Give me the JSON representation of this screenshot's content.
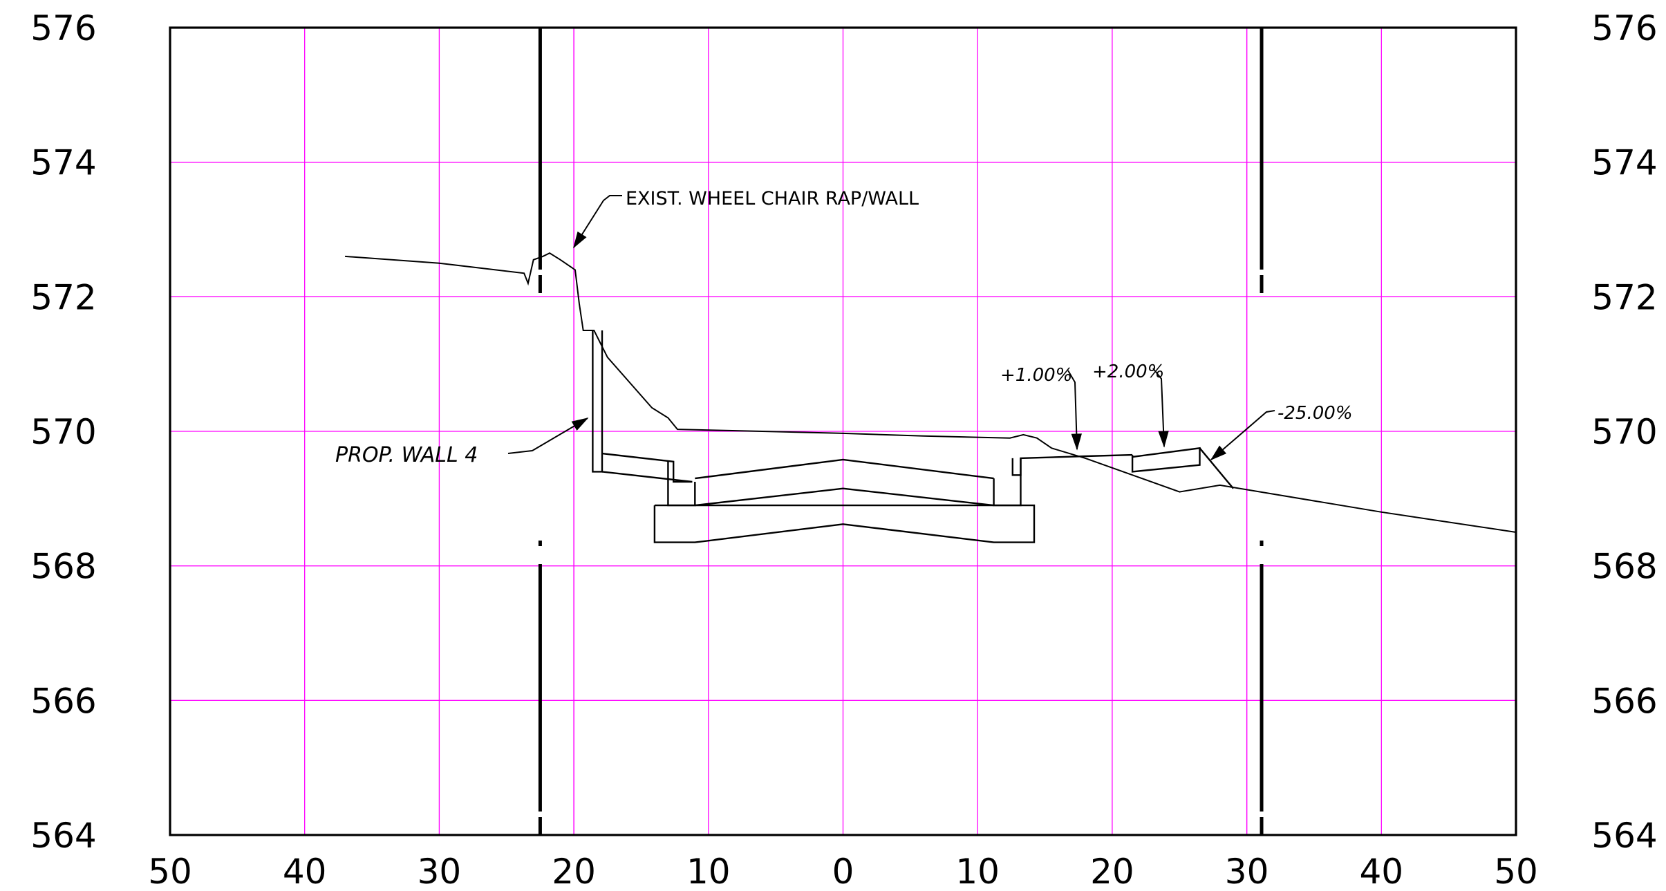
{
  "drawing": {
    "type": "cross-section",
    "offset_axis": {
      "range": [
        -50,
        50
      ],
      "tick_values": [
        -50,
        -40,
        -30,
        -20,
        -10,
        0,
        10,
        20,
        30,
        40,
        50
      ],
      "tick_labels": [
        "50",
        "40",
        "30",
        "20",
        "10",
        "0",
        "10",
        "20",
        "30",
        "40",
        "50"
      ]
    },
    "elevation_axis": {
      "range": [
        564,
        576
      ],
      "tick_values": [
        564,
        566,
        568,
        570,
        572,
        574,
        576
      ],
      "tick_labels": [
        "564",
        "566",
        "568",
        "570",
        "572",
        "574",
        "576"
      ]
    },
    "grid": true,
    "grid_extra_offsets": [
      -20,
      30
    ],
    "colors": {
      "grid": "#ff00ff",
      "ink": "#000000",
      "background": "#ffffff"
    },
    "row_limits": [
      -22.5,
      31.1
    ],
    "existing_ground": [
      [
        -37,
        572.6
      ],
      [
        -30,
        572.5
      ],
      [
        -23.7,
        572.35
      ],
      [
        -23.4,
        572.2
      ],
      [
        -23,
        572.55
      ],
      [
        -22.3,
        572.6
      ],
      [
        -21.8,
        572.65
      ],
      [
        -21,
        572.55
      ],
      [
        -19.9,
        572.4
      ],
      [
        -19.6,
        571.9
      ],
      [
        -19.3,
        571.5
      ],
      [
        -18.5,
        571.5
      ],
      [
        -17.5,
        571.1
      ],
      [
        -14.2,
        570.35
      ],
      [
        -13,
        570.2
      ],
      [
        -12.3,
        570.03
      ],
      [
        -6,
        570.0
      ],
      [
        0,
        569.97
      ],
      [
        6,
        569.93
      ],
      [
        12.4,
        569.9
      ],
      [
        13.4,
        569.95
      ],
      [
        14.4,
        569.9
      ],
      [
        15.5,
        569.75
      ],
      [
        18,
        569.6
      ],
      [
        25,
        569.1
      ],
      [
        28,
        569.2
      ],
      [
        40,
        568.8
      ],
      [
        50,
        568.5
      ]
    ],
    "proposed_section": {
      "wall": [
        [
          -18.6,
          571.5
        ],
        [
          -18.6,
          569.4
        ],
        [
          -17.9,
          569.4
        ],
        [
          -17.9,
          571.5
        ]
      ],
      "left_sidewalk": [
        [
          -17.9,
          569.67
        ],
        [
          -12.6,
          569.55
        ],
        [
          -12.6,
          569.25
        ],
        [
          -11.2,
          569.25
        ],
        [
          -11.2,
          569.25
        ],
        [
          -17.9,
          569.4
        ]
      ],
      "left_curb": [
        [
          -13,
          569.55
        ],
        [
          -13,
          568.9
        ],
        [
          -11,
          568.9
        ],
        [
          -11,
          569.25
        ]
      ],
      "pavement_top": [
        [
          -11,
          569.3
        ],
        [
          0,
          569.58
        ],
        [
          11.2,
          569.3
        ]
      ],
      "pavement_bottom": [
        [
          -11,
          568.9
        ],
        [
          0,
          569.15
        ],
        [
          11.2,
          568.9
        ]
      ],
      "footing": [
        [
          -14,
          568.9
        ],
        [
          -14,
          568.35
        ],
        [
          -11,
          568.35
        ],
        [
          0,
          568.62
        ],
        [
          11.2,
          568.35
        ],
        [
          14.2,
          568.35
        ],
        [
          14.2,
          568.9
        ],
        [
          -14,
          568.9
        ]
      ],
      "right_curb": [
        [
          11.2,
          569.3
        ],
        [
          11.2,
          568.9
        ],
        [
          13.2,
          568.9
        ],
        [
          13.2,
          569.6
        ]
      ],
      "right_sidewalk": [
        [
          12.6,
          569.6
        ],
        [
          12.6,
          569.35
        ],
        [
          13.2,
          569.35
        ],
        [
          13.2,
          569.6
        ],
        [
          18,
          569.63
        ],
        [
          21.5,
          569.65
        ]
      ],
      "right_strip": [
        [
          21.5,
          569.62
        ],
        [
          26.5,
          569.75
        ],
        [
          26.5,
          569.5
        ],
        [
          21.5,
          569.4
        ],
        [
          21.5,
          569.65
        ]
      ],
      "side_slope": [
        [
          26.5,
          569.75
        ],
        [
          29,
          569.15
        ]
      ]
    },
    "annotations": {
      "existing_wall": "EXIST. WHEEL CHAIR RAP/WALL",
      "proposed_wall": "PROP. WALL 4",
      "slope_1": "+1.00%",
      "slope_2": "+2.00%",
      "slope_3": "-25.00%"
    }
  }
}
